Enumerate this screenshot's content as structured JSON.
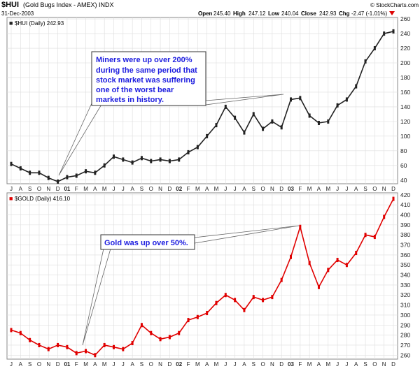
{
  "header": {
    "symbol": "$HUI",
    "name": "(Gold Bugs Index - AMEX) INDX",
    "date": "31-Dec-2003",
    "brand": "© StockCharts.com",
    "open_label": "Open",
    "open": "245.40",
    "high_label": "High",
    "high": "247.12",
    "low_label": "Low",
    "low": "240.04",
    "close_label": "Close",
    "close": "242.93",
    "chg_label": "Chg",
    "chg": "-2.47 (-1.01%)"
  },
  "colors": {
    "hui_bars": "#222222",
    "gold_bars": "#e00000",
    "annotation": "#1d1ddf",
    "grid": "#dddddd"
  },
  "x_axis": {
    "labels": [
      "J",
      "A",
      "S",
      "O",
      "N",
      "D",
      "01",
      "F",
      "M",
      "A",
      "M",
      "J",
      "J",
      "A",
      "S",
      "O",
      "N",
      "D",
      "02",
      "F",
      "M",
      "A",
      "M",
      "J",
      "J",
      "A",
      "S",
      "O",
      "N",
      "D",
      "03",
      "F",
      "M",
      "A",
      "M",
      "J",
      "J",
      "A",
      "S",
      "O",
      "N",
      "D"
    ]
  },
  "chart_data": [
    {
      "type": "line",
      "title": "$HUI (Daily) 242.93",
      "ylim": [
        35,
        262
      ],
      "yticks": [
        40,
        60,
        80,
        100,
        120,
        140,
        160,
        180,
        200,
        220,
        240,
        260
      ],
      "x": [
        "2000-07",
        "2000-08",
        "2000-09",
        "2000-10",
        "2000-11",
        "2000-12",
        "2001-01",
        "2001-02",
        "2001-03",
        "2001-04",
        "2001-05",
        "2001-06",
        "2001-07",
        "2001-08",
        "2001-09",
        "2001-10",
        "2001-11",
        "2001-12",
        "2002-01",
        "2002-02",
        "2002-03",
        "2002-04",
        "2002-05",
        "2002-06",
        "2002-07",
        "2002-08",
        "2002-09",
        "2002-10",
        "2002-11",
        "2002-12",
        "2003-01",
        "2003-02",
        "2003-03",
        "2003-04",
        "2003-05",
        "2003-06",
        "2003-07",
        "2003-08",
        "2003-09",
        "2003-10",
        "2003-11",
        "2003-12"
      ],
      "values": [
        62,
        56,
        50,
        50,
        43,
        38,
        44,
        46,
        52,
        50,
        60,
        72,
        68,
        64,
        70,
        66,
        68,
        66,
        68,
        78,
        85,
        100,
        115,
        140,
        125,
        105,
        130,
        110,
        120,
        112,
        150,
        152,
        128,
        118,
        120,
        142,
        150,
        168,
        202,
        220,
        240,
        243
      ],
      "annotation": [
        "Miners were up over 200%",
        "during the same period that",
        "stock market was suffering",
        "one of the worst bear",
        "markets in history."
      ]
    },
    {
      "type": "line",
      "title": "$GOLD (Daily) 416.10",
      "ylim": [
        256,
        422
      ],
      "yticks": [
        260,
        270,
        280,
        290,
        300,
        310,
        320,
        330,
        340,
        350,
        360,
        370,
        380,
        390,
        400,
        410,
        420
      ],
      "x": [
        "2000-07",
        "2000-08",
        "2000-09",
        "2000-10",
        "2000-11",
        "2000-12",
        "2001-01",
        "2001-02",
        "2001-03",
        "2001-04",
        "2001-05",
        "2001-06",
        "2001-07",
        "2001-08",
        "2001-09",
        "2001-10",
        "2001-11",
        "2001-12",
        "2002-01",
        "2002-02",
        "2002-03",
        "2002-04",
        "2002-05",
        "2002-06",
        "2002-07",
        "2002-08",
        "2002-09",
        "2002-10",
        "2002-11",
        "2002-12",
        "2003-01",
        "2003-02",
        "2003-03",
        "2003-04",
        "2003-05",
        "2003-06",
        "2003-07",
        "2003-08",
        "2003-09",
        "2003-10",
        "2003-11",
        "2003-12"
      ],
      "values": [
        285,
        282,
        275,
        270,
        266,
        270,
        268,
        262,
        264,
        260,
        270,
        268,
        266,
        272,
        290,
        282,
        276,
        278,
        282,
        295,
        298,
        302,
        312,
        320,
        315,
        305,
        318,
        315,
        318,
        335,
        358,
        388,
        352,
        328,
        345,
        355,
        350,
        362,
        380,
        378,
        398,
        416
      ],
      "annotation": [
        "Gold was up over 50%."
      ]
    }
  ]
}
